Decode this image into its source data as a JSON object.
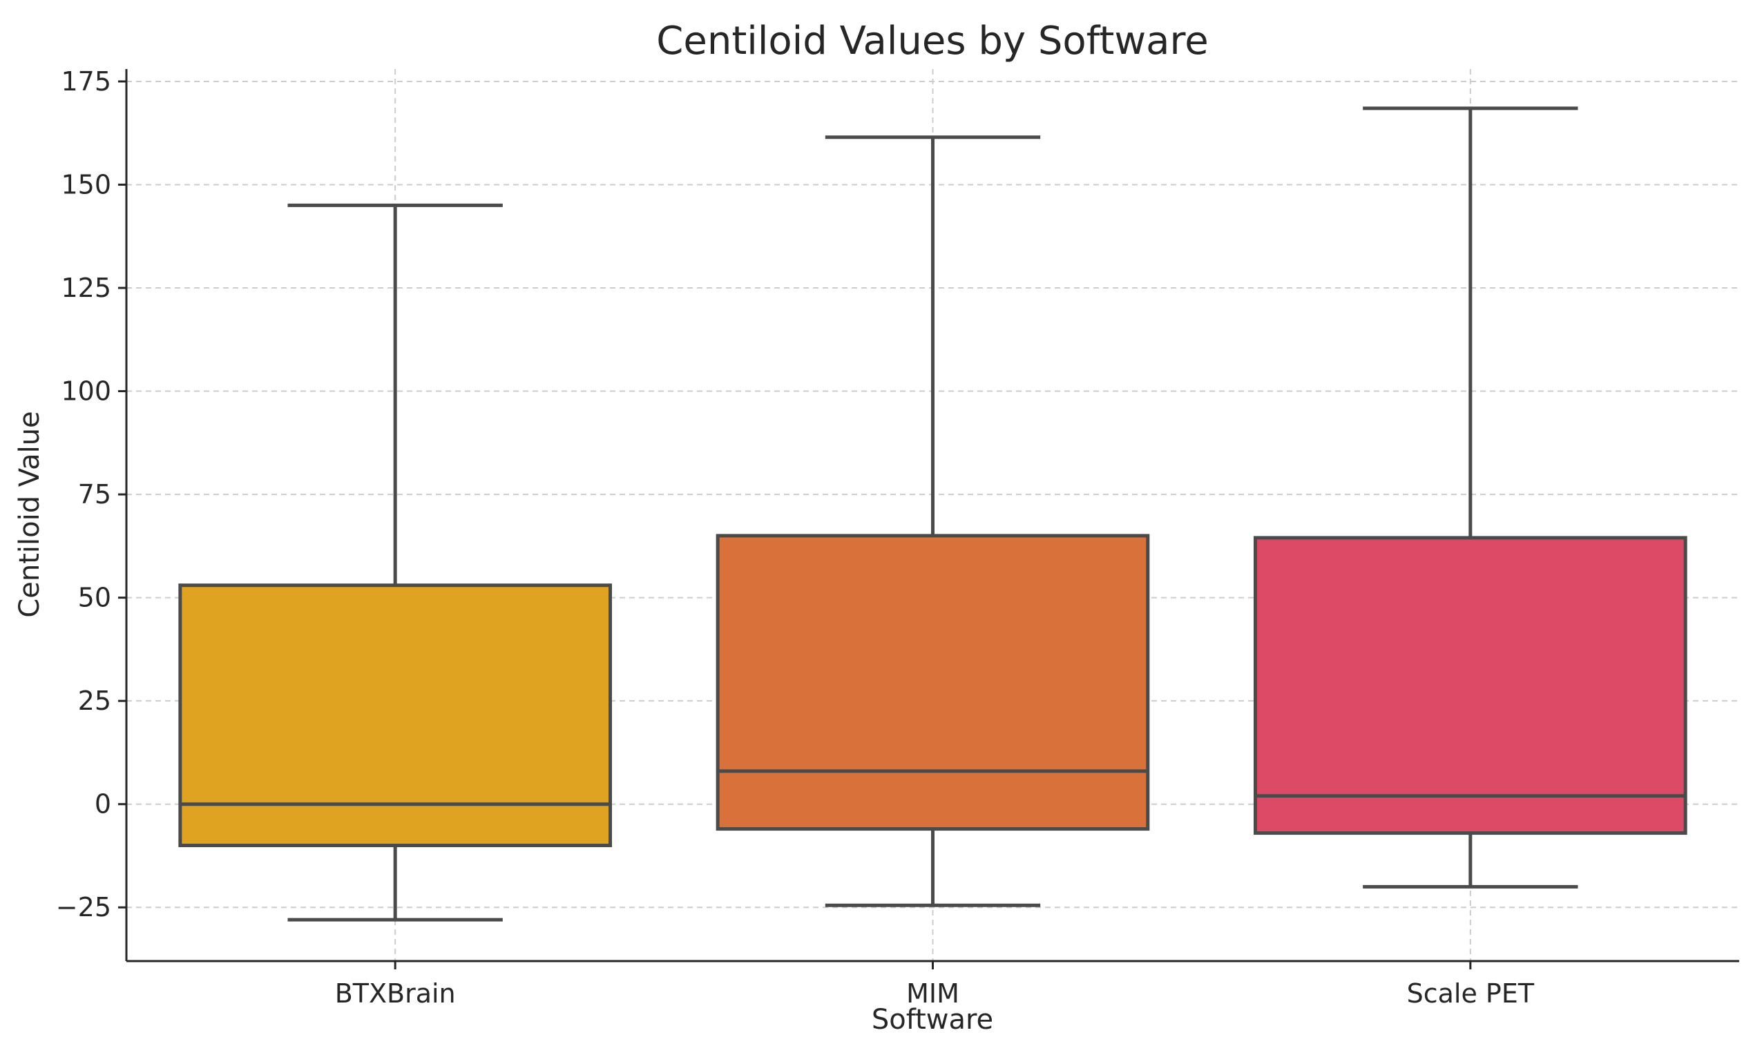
{
  "chart_data": {
    "type": "box",
    "title": "Centiloid Values by Software",
    "xlabel": "Software",
    "ylabel": "Centiloid Value",
    "ylim": [
      -38,
      178
    ],
    "yticks": [
      -25,
      0,
      25,
      50,
      75,
      100,
      125,
      150,
      175
    ],
    "ytick_labels": [
      "−25",
      "0",
      "25",
      "50",
      "75",
      "100",
      "125",
      "150",
      "175"
    ],
    "grid": true,
    "categories": [
      "BTXBrain",
      "MIM",
      "Scale PET"
    ],
    "series": [
      {
        "name": "BTXBrain",
        "color": "#DFA321",
        "whisker_low": -28,
        "q1": -10,
        "median": 0,
        "q3": 53,
        "whisker_high": 145
      },
      {
        "name": "MIM",
        "color": "#D9713A",
        "whisker_low": -24.5,
        "q1": -6,
        "median": 8,
        "q3": 65,
        "whisker_high": 161.5
      },
      {
        "name": "Scale PET",
        "color": "#DC4A66",
        "whisker_low": -20,
        "q1": -7,
        "median": 2,
        "q3": 64.5,
        "whisker_high": 168.5
      }
    ]
  }
}
